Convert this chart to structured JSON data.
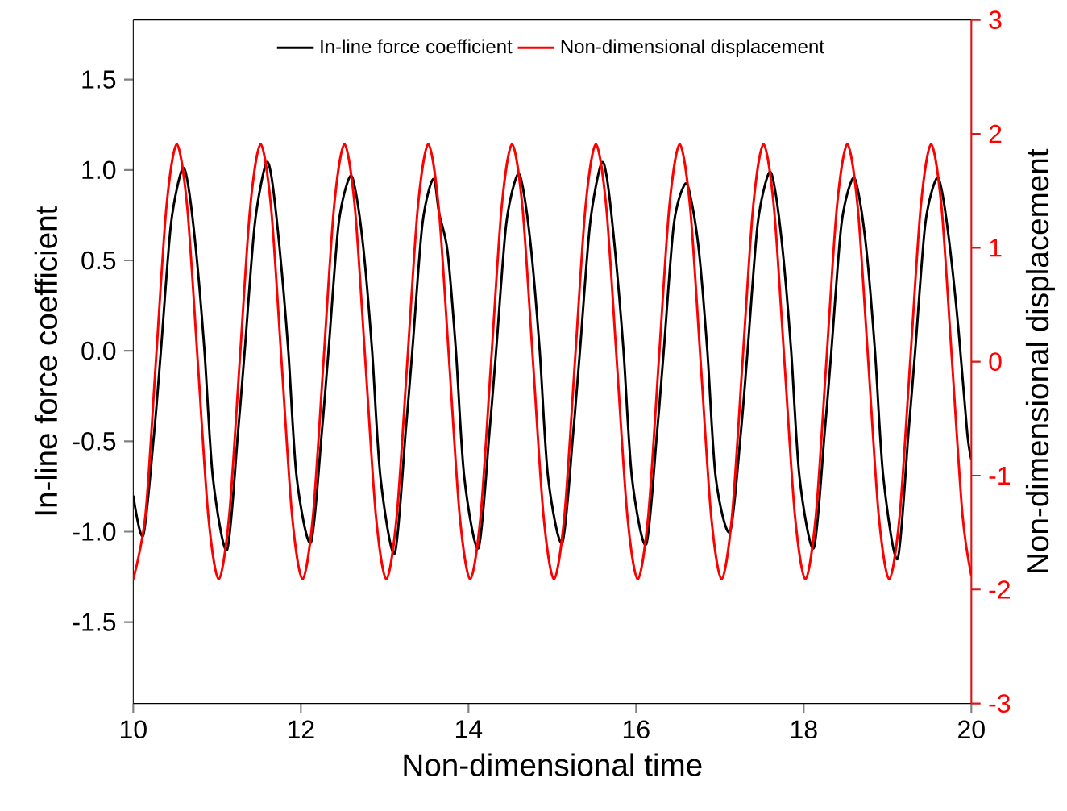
{
  "chart_data": {
    "type": "line",
    "xlabel": "Non-dimensional time",
    "ylabel": "In-line force coefficient",
    "y2label": "Non-dimensional displacement",
    "xlim": [
      10,
      20
    ],
    "xticks": [
      10,
      12,
      14,
      16,
      18,
      20
    ],
    "ylim": [
      -1.95,
      1.83
    ],
    "yticks": [
      -1.5,
      {
        "value": -1.0,
        "label": "-1.0"
      },
      -0.5,
      {
        "value": 0.0,
        "label": "0.0"
      },
      0.5,
      {
        "value": 1.0,
        "label": "1.0"
      },
      1.5
    ],
    "y2lim": [
      -3,
      3
    ],
    "y2ticks": [
      -3,
      -2,
      -1,
      0,
      1,
      2,
      3
    ],
    "legend": "top",
    "series": [
      {
        "name": "In-line force coefficient",
        "color": "#000000",
        "x": [
          10.0,
          10.12,
          10.25,
          10.33,
          10.45,
          10.58,
          10.65,
          10.75,
          10.85,
          10.95,
          11.12,
          11.25,
          11.33,
          11.45,
          11.58,
          11.65,
          11.75,
          11.85,
          11.95,
          12.12,
          12.25,
          12.33,
          12.45,
          12.58,
          12.65,
          12.75,
          12.85,
          12.95,
          13.12,
          13.25,
          13.33,
          13.45,
          13.58,
          13.65,
          13.75,
          13.85,
          13.95,
          14.12,
          14.25,
          14.33,
          14.45,
          14.58,
          14.65,
          14.75,
          14.85,
          14.95,
          15.12,
          15.25,
          15.33,
          15.45,
          15.58,
          15.65,
          15.75,
          15.85,
          15.95,
          16.12,
          16.25,
          16.33,
          16.45,
          16.58,
          16.65,
          16.75,
          16.85,
          16.95,
          17.12,
          17.25,
          17.33,
          17.45,
          17.58,
          17.65,
          17.75,
          17.85,
          17.95,
          18.12,
          18.25,
          18.33,
          18.45,
          18.58,
          18.65,
          18.75,
          18.85,
          18.95,
          19.12,
          19.25,
          19.33,
          19.45,
          19.58,
          19.65,
          19.75,
          19.85,
          19.95,
          20.0
        ],
        "values": [
          -0.8,
          -1.02,
          -0.45,
          0,
          0.7,
          1.0,
          0.93,
          0.55,
          0,
          -0.7,
          -1.1,
          -0.45,
          0,
          0.7,
          1.03,
          0.96,
          0.55,
          0,
          -0.7,
          -1.06,
          -0.45,
          0,
          0.7,
          0.96,
          0.89,
          0.55,
          0,
          -0.7,
          -1.12,
          -0.45,
          0,
          0.7,
          0.95,
          0.76,
          0.55,
          0,
          -0.7,
          -1.09,
          -0.45,
          0,
          0.7,
          0.97,
          0.9,
          0.55,
          0,
          -0.7,
          -1.06,
          -0.45,
          0,
          0.7,
          1.03,
          0.96,
          0.55,
          0,
          -0.7,
          -1.07,
          -0.45,
          0,
          0.7,
          0.92,
          0.85,
          0.55,
          0,
          -0.7,
          -1.0,
          -0.45,
          0,
          0.7,
          0.98,
          0.91,
          0.55,
          0,
          -0.7,
          -1.09,
          -0.45,
          0,
          0.7,
          0.95,
          0.88,
          0.55,
          0,
          -0.7,
          -1.15,
          -0.45,
          0,
          0.7,
          0.95,
          0.88,
          0.55,
          0.1,
          -0.45,
          -0.6
        ]
      },
      {
        "name": "Non-dimensional displacement",
        "color": "#ff0000",
        "axis": "y2",
        "x": [
          10.0,
          10.145,
          10.27,
          10.395,
          10.52,
          10.645,
          10.77,
          10.895,
          11.02,
          11.145,
          11.27,
          11.395,
          11.52,
          11.645,
          11.77,
          11.895,
          12.02,
          12.145,
          12.27,
          12.395,
          12.52,
          12.645,
          12.77,
          12.895,
          13.02,
          13.145,
          13.27,
          13.395,
          13.52,
          13.645,
          13.77,
          13.895,
          14.02,
          14.145,
          14.27,
          14.395,
          14.52,
          14.645,
          14.77,
          14.895,
          15.02,
          15.145,
          15.27,
          15.395,
          15.52,
          15.645,
          15.77,
          15.895,
          16.02,
          16.145,
          16.27,
          16.395,
          16.52,
          16.645,
          16.77,
          16.895,
          17.02,
          17.145,
          17.27,
          17.395,
          17.52,
          17.645,
          17.77,
          17.895,
          18.02,
          18.145,
          18.27,
          18.395,
          18.52,
          18.645,
          18.77,
          18.895,
          19.02,
          19.145,
          19.27,
          19.395,
          19.52,
          19.645,
          19.77,
          19.895,
          20.0
        ],
        "values": [
          -1.91,
          -1.35,
          0,
          1.35,
          1.91,
          1.35,
          0,
          -1.35,
          -1.91,
          -1.35,
          0,
          1.35,
          1.91,
          1.35,
          0,
          -1.35,
          -1.91,
          -1.35,
          0,
          1.35,
          1.91,
          1.35,
          0,
          -1.35,
          -1.91,
          -1.35,
          0,
          1.35,
          1.91,
          1.35,
          0,
          -1.35,
          -1.91,
          -1.35,
          0,
          1.35,
          1.91,
          1.35,
          0,
          -1.35,
          -1.91,
          -1.35,
          0,
          1.35,
          1.91,
          1.35,
          0,
          -1.35,
          -1.91,
          -1.35,
          0,
          1.35,
          1.91,
          1.35,
          0,
          -1.35,
          -1.91,
          -1.35,
          0,
          1.35,
          1.91,
          1.35,
          0,
          -1.35,
          -1.91,
          -1.35,
          0,
          1.35,
          1.91,
          1.35,
          0,
          -1.35,
          -1.91,
          -1.35,
          0,
          1.35,
          1.91,
          1.35,
          0,
          -1.35,
          -1.88
        ]
      }
    ]
  }
}
